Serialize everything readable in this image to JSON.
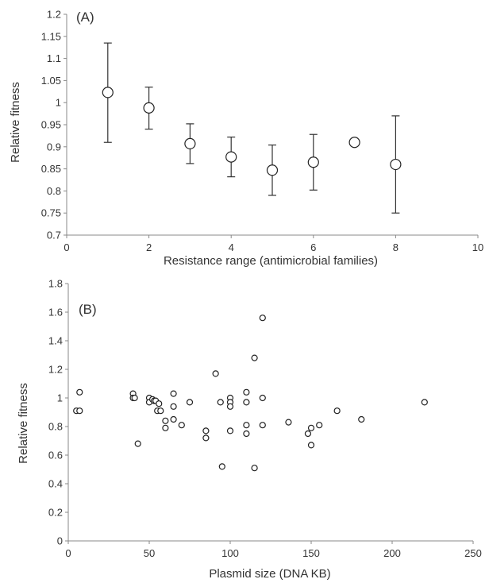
{
  "chart_data": [
    {
      "type": "scatter",
      "panel_label": "(A)",
      "xlabel": "Resistance range (antimicrobial families)",
      "ylabel": "Relative fitness",
      "xlim": [
        0,
        10
      ],
      "ylim": [
        0.7,
        1.2
      ],
      "xticks": [
        "0",
        "2",
        "4",
        "6",
        "8",
        "10"
      ],
      "yticks": [
        "0.7",
        "0.75",
        "0.8",
        "0.85",
        "0.9",
        "0.95",
        "1",
        "1.05",
        "1.1",
        "1.15",
        "1.2"
      ],
      "error_bars": true,
      "grid": false,
      "points": [
        {
          "x": 1,
          "y": 1.023,
          "lo": 0.91,
          "hi": 1.135
        },
        {
          "x": 2,
          "y": 0.988,
          "lo": 0.94,
          "hi": 1.035
        },
        {
          "x": 3,
          "y": 0.907,
          "lo": 0.862,
          "hi": 0.952
        },
        {
          "x": 4,
          "y": 0.877,
          "lo": 0.832,
          "hi": 0.922
        },
        {
          "x": 5,
          "y": 0.847,
          "lo": 0.79,
          "hi": 0.904
        },
        {
          "x": 6,
          "y": 0.865,
          "lo": 0.802,
          "hi": 0.928
        },
        {
          "x": 7,
          "y": 0.91
        },
        {
          "x": 8,
          "y": 0.86,
          "lo": 0.75,
          "hi": 0.97
        }
      ]
    },
    {
      "type": "scatter",
      "panel_label": "(B)",
      "xlabel": "Plasmid size (DNA KB)",
      "ylabel": "Relative fitness",
      "xlim": [
        0,
        250
      ],
      "ylim": [
        0,
        1.8
      ],
      "xticks": [
        "0",
        "50",
        "100",
        "150",
        "200",
        "250"
      ],
      "yticks": [
        "0",
        "0.2",
        "0.4",
        "0.6",
        "0.8",
        "1",
        "1.2",
        "1.4",
        "1.6",
        "1.8"
      ],
      "grid": false,
      "points": [
        {
          "x": 5,
          "y": 0.91
        },
        {
          "x": 7,
          "y": 1.04
        },
        {
          "x": 7,
          "y": 0.91
        },
        {
          "x": 40,
          "y": 1.03
        },
        {
          "x": 40,
          "y": 1.0
        },
        {
          "x": 41,
          "y": 1.0
        },
        {
          "x": 43,
          "y": 0.68
        },
        {
          "x": 50,
          "y": 1.0
        },
        {
          "x": 50,
          "y": 0.97
        },
        {
          "x": 52,
          "y": 0.99
        },
        {
          "x": 53,
          "y": 0.98
        },
        {
          "x": 54,
          "y": 0.98
        },
        {
          "x": 55,
          "y": 0.91
        },
        {
          "x": 56,
          "y": 0.96
        },
        {
          "x": 57,
          "y": 0.91
        },
        {
          "x": 60,
          "y": 0.84
        },
        {
          "x": 60,
          "y": 0.79
        },
        {
          "x": 65,
          "y": 1.03
        },
        {
          "x": 65,
          "y": 0.94
        },
        {
          "x": 65,
          "y": 0.85
        },
        {
          "x": 70,
          "y": 0.81
        },
        {
          "x": 75,
          "y": 0.97
        },
        {
          "x": 85,
          "y": 0.77
        },
        {
          "x": 85,
          "y": 0.72
        },
        {
          "x": 91,
          "y": 1.17
        },
        {
          "x": 94,
          "y": 0.97
        },
        {
          "x": 95,
          "y": 0.52
        },
        {
          "x": 100,
          "y": 1.0
        },
        {
          "x": 100,
          "y": 0.97
        },
        {
          "x": 100,
          "y": 0.94
        },
        {
          "x": 100,
          "y": 0.77
        },
        {
          "x": 110,
          "y": 1.04
        },
        {
          "x": 110,
          "y": 0.97
        },
        {
          "x": 110,
          "y": 0.81
        },
        {
          "x": 110,
          "y": 0.75
        },
        {
          "x": 115,
          "y": 1.28
        },
        {
          "x": 115,
          "y": 0.51
        },
        {
          "x": 120,
          "y": 1.56
        },
        {
          "x": 120,
          "y": 1.0
        },
        {
          "x": 120,
          "y": 0.81
        },
        {
          "x": 136,
          "y": 0.83
        },
        {
          "x": 148,
          "y": 0.75
        },
        {
          "x": 150,
          "y": 0.79
        },
        {
          "x": 150,
          "y": 0.67
        },
        {
          "x": 155,
          "y": 0.81
        },
        {
          "x": 166,
          "y": 0.91
        },
        {
          "x": 181,
          "y": 0.85
        },
        {
          "x": 220,
          "y": 0.97
        }
      ]
    }
  ]
}
